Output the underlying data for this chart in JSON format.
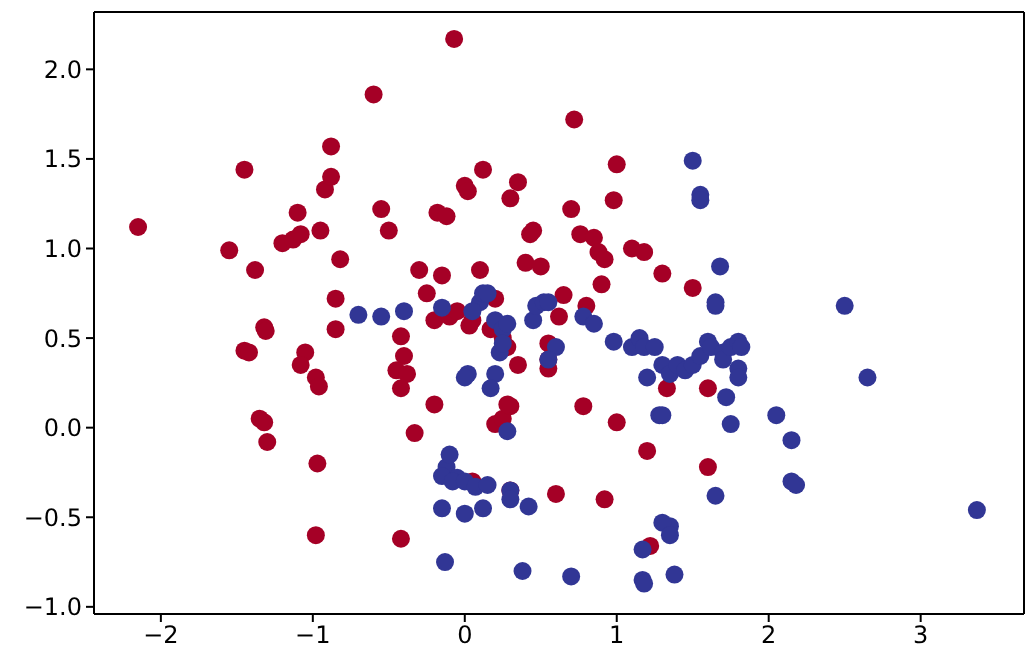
{
  "chart_data": {
    "type": "scatter",
    "marker": "circle",
    "grid": false,
    "legend": false,
    "xlim": [
      -2.44,
      3.68
    ],
    "ylim": [
      -1.04,
      2.32
    ],
    "xticks": [
      -2,
      -1,
      0,
      1,
      2,
      3
    ],
    "yticks": [
      {
        "value": -1,
        "label": "−1.0"
      },
      {
        "value": -0.5,
        "label": "−0.5"
      },
      {
        "value": 0,
        "label": "0.0"
      },
      {
        "value": 0.5,
        "label": "0.5"
      },
      {
        "value": 1,
        "label": "1.0"
      },
      {
        "value": 1.5,
        "label": "1.5"
      },
      {
        "value": 2,
        "label": "2.0"
      }
    ],
    "series": [
      {
        "color": "#a50026",
        "x": [
          -2.15,
          -1.55,
          -1.45,
          -1.38,
          -1.45,
          -1.42,
          -1.32,
          -1.31,
          -1.35,
          -1.32,
          -1.3,
          -1.2,
          -1.13,
          -1.1,
          -1.08,
          -1.05,
          -1.08,
          -0.98,
          -0.96,
          -0.97,
          -0.98,
          -0.95,
          -0.92,
          -0.88,
          -0.88,
          -0.85,
          -0.85,
          -0.82,
          -0.6,
          -0.55,
          -0.5,
          -0.42,
          -0.4,
          -0.45,
          -0.42,
          -0.38,
          -0.33,
          -0.3,
          -0.25,
          -0.2,
          -0.18,
          -0.12,
          -0.07,
          -0.1,
          -0.15,
          -0.42,
          0.0,
          0.02,
          0.03,
          0.05,
          0.1,
          0.12,
          0.2,
          0.25,
          0.28,
          0.3,
          0.35,
          0.4,
          0.43,
          0.45,
          0.5,
          0.2,
          0.25,
          0.3,
          0.28,
          0.3,
          0.35,
          0.55,
          0.55,
          0.62,
          0.65,
          0.7,
          0.72,
          0.76,
          0.8,
          0.85,
          0.88,
          0.92,
          0.78,
          0.9,
          0.92,
          0.98,
          1.0,
          1.0,
          1.1,
          1.18,
          1.2,
          1.22,
          1.3,
          1.33,
          1.5,
          1.6,
          1.6,
          0.6,
          0.55,
          -0.2,
          0.05,
          -0.05,
          0.17
        ],
        "values": [
          1.12,
          0.99,
          1.44,
          0.88,
          0.43,
          0.42,
          0.56,
          0.54,
          0.05,
          0.03,
          -0.08,
          1.03,
          1.05,
          1.2,
          1.08,
          0.42,
          0.35,
          0.28,
          0.23,
          -0.2,
          -0.6,
          1.1,
          1.33,
          1.4,
          1.57,
          0.72,
          0.55,
          0.94,
          1.86,
          1.22,
          1.1,
          0.51,
          0.4,
          0.32,
          0.22,
          0.3,
          -0.03,
          0.88,
          0.75,
          0.6,
          1.2,
          1.18,
          2.17,
          0.62,
          0.85,
          -0.62,
          1.35,
          1.32,
          0.57,
          0.6,
          0.88,
          1.44,
          0.72,
          0.5,
          0.45,
          1.28,
          1.37,
          0.92,
          1.08,
          1.1,
          0.9,
          0.02,
          0.05,
          0.12,
          0.13,
          -0.35,
          0.35,
          0.33,
          0.38,
          0.62,
          0.74,
          1.22,
          1.72,
          1.08,
          0.68,
          1.06,
          0.98,
          0.94,
          0.12,
          0.8,
          -0.4,
          1.27,
          1.47,
          0.03,
          1.0,
          0.98,
          -0.13,
          -0.66,
          0.86,
          0.22,
          0.78,
          0.22,
          -0.22,
          -0.37,
          0.47,
          0.13,
          -0.3,
          0.65,
          0.55
        ]
      },
      {
        "color": "#313695",
        "x": [
          -0.7,
          -0.55,
          -0.4,
          0.1,
          0.12,
          0.15,
          0.05,
          0.2,
          0.25,
          0.28,
          0.2,
          0.23,
          0.25,
          0.17,
          0.02,
          0.0,
          0.28,
          0.45,
          0.47,
          0.52,
          0.55,
          0.6,
          0.78,
          0.85,
          1.1,
          1.15,
          1.18,
          1.25,
          1.3,
          1.35,
          1.4,
          1.45,
          1.5,
          1.55,
          1.6,
          1.62,
          1.65,
          1.65,
          1.5,
          1.55,
          1.55,
          1.68,
          1.7,
          1.7,
          1.75,
          1.8,
          1.82,
          1.8,
          1.8,
          1.72,
          1.75,
          1.65,
          2.05,
          2.15,
          2.15,
          2.18,
          2.5,
          2.65,
          3.37,
          1.28,
          1.35,
          1.3,
          1.35,
          1.38,
          1.17,
          1.17,
          1.18,
          0.7,
          0.38,
          -0.13,
          -0.15,
          0.0,
          0.12,
          -0.12,
          -0.15,
          -0.05,
          -0.08,
          0.0,
          0.07,
          0.15,
          -0.1,
          0.3,
          0.3,
          0.42,
          -0.15,
          0.98,
          0.55,
          1.2,
          1.3
        ],
        "values": [
          0.63,
          0.62,
          0.65,
          0.7,
          0.75,
          0.75,
          0.65,
          0.6,
          0.55,
          0.58,
          0.3,
          0.42,
          0.47,
          0.22,
          0.3,
          0.28,
          -0.02,
          0.6,
          0.68,
          0.7,
          0.7,
          0.45,
          0.62,
          0.58,
          0.45,
          0.5,
          0.45,
          0.45,
          0.35,
          0.3,
          0.35,
          0.32,
          0.35,
          0.4,
          0.48,
          0.45,
          0.7,
          0.68,
          1.49,
          1.3,
          1.27,
          0.9,
          0.42,
          0.38,
          0.45,
          0.48,
          0.45,
          0.33,
          0.28,
          0.17,
          0.02,
          -0.38,
          0.07,
          -0.07,
          -0.3,
          -0.32,
          0.68,
          0.28,
          -0.46,
          0.07,
          -0.55,
          -0.53,
          -0.6,
          -0.82,
          -0.68,
          -0.85,
          -0.87,
          -0.83,
          -0.8,
          -0.75,
          -0.45,
          -0.48,
          -0.45,
          -0.22,
          -0.27,
          -0.28,
          -0.3,
          -0.3,
          -0.33,
          -0.32,
          -0.15,
          -0.35,
          -0.4,
          -0.44,
          0.67,
          0.48,
          0.38,
          0.28,
          0.07
        ]
      }
    ]
  }
}
